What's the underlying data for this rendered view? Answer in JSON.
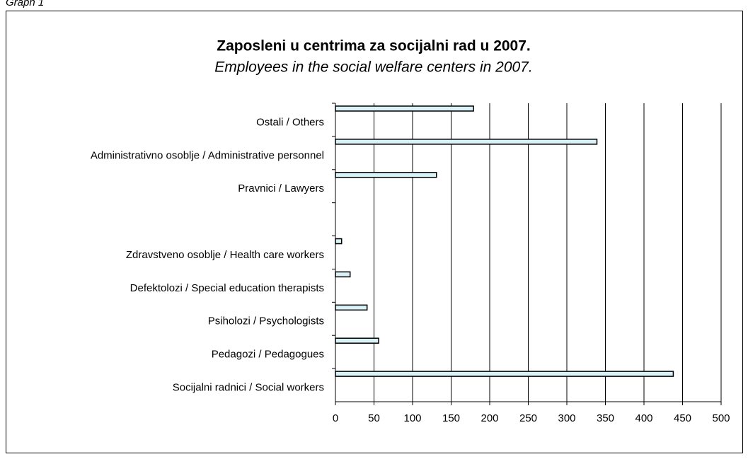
{
  "caption": "Graph 1",
  "chart_data": {
    "type": "hbar",
    "title": "Zaposleni u centrima za socijalni rad u 2007.",
    "subtitle": "Employees in the social welfare centers in 2007.",
    "categories": [
      "Ostali / Others",
      "Administrativno osoblje / Administrative personnel",
      "Pravnici / Lawyers",
      null,
      "Zdravstveno osoblje / Health care workers",
      "Defektolozi / Special education therapists",
      "Psiholozi / Psychologists",
      "Pedagozi / Pedagogues",
      "Socijalni radnici / Social workers"
    ],
    "values": [
      179,
      339,
      131,
      null,
      8,
      19,
      41,
      56,
      438
    ],
    "color": "#d9f2f8",
    "xlim": [
      0,
      500
    ],
    "xticks": [
      0,
      50,
      100,
      150,
      200,
      250,
      300,
      350,
      400,
      450,
      500
    ],
    "grid": true
  }
}
